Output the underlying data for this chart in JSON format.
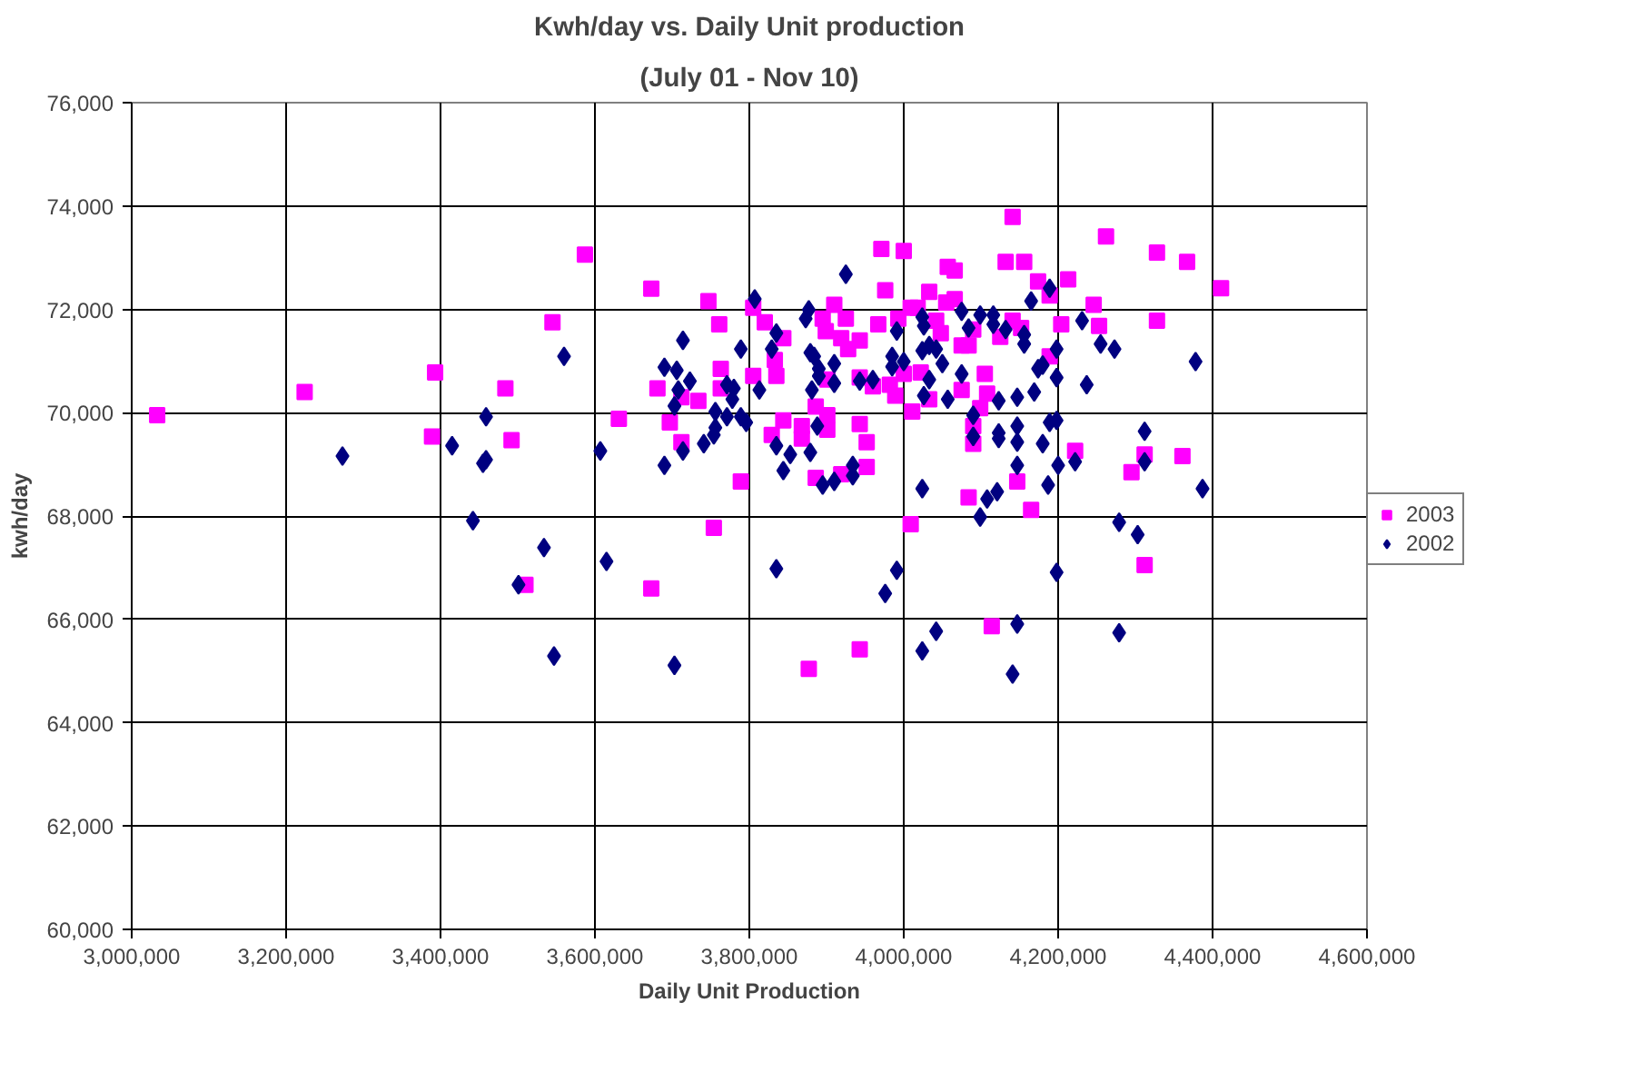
{
  "chart_data": {
    "type": "scatter",
    "title": "Kwh/day vs. Daily Unit production",
    "subtitle": "(July 01 - Nov 10)",
    "xlabel": "Daily Unit Production",
    "ylabel": "kwh/day",
    "xlim": [
      3000000,
      4600000
    ],
    "xticks": [
      {
        "value": 3000000,
        "label": "3,000,000"
      },
      {
        "value": 3200000,
        "label": "3,200,000"
      },
      {
        "value": 3400000,
        "label": "3,400,000"
      },
      {
        "value": 3600000,
        "label": "3,600,000"
      },
      {
        "value": 3800000,
        "label": "3,800,000"
      },
      {
        "value": 4000000,
        "label": "4,000,000"
      },
      {
        "value": 4200000,
        "label": "4,200,000"
      },
      {
        "value": 4400000,
        "label": "4,400,000"
      },
      {
        "value": 4600000,
        "label": "4,600,000"
      }
    ],
    "ylim": [
      60000,
      76000
    ],
    "yticks": [
      {
        "value": 60000,
        "label": "60,000"
      },
      {
        "value": 62000,
        "label": "62,000"
      },
      {
        "value": 64000,
        "label": "64,000"
      },
      {
        "value": 66000,
        "label": "66,000"
      },
      {
        "value": 68000,
        "label": "68,000"
      },
      {
        "value": 70000,
        "label": "70,000"
      },
      {
        "value": 72000,
        "label": "72,000"
      },
      {
        "value": 74000,
        "label": "74,000"
      },
      {
        "value": 76000,
        "label": "76,000"
      }
    ],
    "grid": true,
    "legend": "right",
    "series": [
      {
        "name": "2003",
        "color": "#ff00ff",
        "marker": "square",
        "x": [
          3033000,
          3224000,
          3393000,
          3389000,
          3484000,
          3492000,
          3510000,
          3545000,
          3587000,
          3673000,
          3747000,
          3761000,
          3763000,
          3763000,
          3681000,
          3712000,
          3734000,
          3631000,
          3697000,
          3712000,
          3789000,
          3754000,
          3673000,
          3877000,
          3805000,
          3820000,
          3844000,
          3833000,
          3835000,
          3805000,
          3844000,
          3829000,
          3868000,
          3868000,
          3886000,
          3901000,
          3901000,
          3886000,
          3919000,
          3910000,
          3895000,
          3899000,
          3919000,
          3928000,
          3901000,
          4141000,
          3971000,
          4000000,
          4057000,
          4066000,
          4132000,
          4156000,
          4174000,
          4213000,
          4262000,
          4246000,
          4253000,
          4204000,
          4189000,
          3976000,
          4033000,
          4009000,
          4018000,
          4055000,
          4066000,
          3993000,
          3967000,
          3925000,
          4042000,
          4048000,
          4075000,
          4084000,
          4090000,
          4141000,
          4152000,
          4125000,
          3943000,
          4189000,
          3943000,
          3960000,
          3982000,
          4000000,
          4022000,
          3989000,
          4033000,
          4075000,
          4105000,
          4108000,
          4099000,
          4011000,
          4090000,
          4090000,
          3943000,
          3952000,
          3952000,
          4147000,
          4165000,
          4084000,
          4009000,
          4114000,
          3943000,
          4222000,
          4328000,
          4367000,
          4411000,
          4328000,
          4312000,
          4361000,
          4295000,
          4312000
        ],
        "values": [
          69950,
          70400,
          70780,
          69540,
          70470,
          69470,
          66670,
          71750,
          73060,
          72400,
          72160,
          71710,
          70850,
          70470,
          70470,
          70300,
          70230,
          69880,
          69810,
          69430,
          68670,
          67770,
          66600,
          65040,
          72030,
          71750,
          71440,
          71020,
          70710,
          70710,
          69850,
          69570,
          69740,
          69500,
          70120,
          69950,
          69670,
          68740,
          68810,
          72090,
          71820,
          71580,
          71440,
          71230,
          70640,
          73790,
          73170,
          73130,
          72820,
          72750,
          72920,
          72920,
          72540,
          72580,
          73410,
          72090,
          71680,
          71710,
          72270,
          72370,
          72340,
          72030,
          72030,
          72130,
          72200,
          71820,
          71710,
          71820,
          71780,
          71540,
          71300,
          71300,
          71610,
          71780,
          71640,
          71470,
          71400,
          71090,
          70680,
          70510,
          70540,
          70750,
          70780,
          70330,
          70260,
          70440,
          70750,
          70370,
          70090,
          70020,
          69740,
          69400,
          69780,
          69430,
          68950,
          68670,
          68120,
          68360,
          67840,
          65870,
          65420,
          69260,
          73100,
          72920,
          72410,
          71780,
          69190,
          69160,
          68850,
          67050
        ]
      },
      {
        "name": "2002",
        "color": "#000080",
        "marker": "diamond",
        "x": [
          3273000,
          3415000,
          3459000,
          3455000,
          3459000,
          3442000,
          3534000,
          3501000,
          3547000,
          3560000,
          3607000,
          3615000,
          3703000,
          3714000,
          3690000,
          3706000,
          3723000,
          3708000,
          3703000,
          3756000,
          3771000,
          3780000,
          3778000,
          3771000,
          3789000,
          3796000,
          3756000,
          3754000,
          3741000,
          3714000,
          3690000,
          3807000,
          3789000,
          3813000,
          3829000,
          3835000,
          3835000,
          3853000,
          3844000,
          3835000,
          3877000,
          3873000,
          3879000,
          3884000,
          3890000,
          3890000,
          3910000,
          3910000,
          3881000,
          3888000,
          3879000,
          3895000,
          3910000,
          3925000,
          3934000,
          4189000,
          4165000,
          4024000,
          4026000,
          4075000,
          4099000,
          4116000,
          4116000,
          4084000,
          4132000,
          4156000,
          4156000,
          4231000,
          4255000,
          3991000,
          4024000,
          4033000,
          4042000,
          3985000,
          4000000,
          3985000,
          4050000,
          3943000,
          3960000,
          4033000,
          4075000,
          4026000,
          4057000,
          4123000,
          4147000,
          4169000,
          4174000,
          4180000,
          4198000,
          4198000,
          4237000,
          4090000,
          4090000,
          4123000,
          4123000,
          4147000,
          4147000,
          4147000,
          4180000,
          4189000,
          4198000,
          4200000,
          4187000,
          4222000,
          3934000,
          4024000,
          4108000,
          4121000,
          4099000,
          3991000,
          3976000,
          4198000,
          4042000,
          4024000,
          4147000,
          4141000,
          4273000,
          4378000,
          4312000,
          4312000,
          4387000,
          4279000,
          4303000,
          4279000
        ],
        "values": [
          69160,
          69360,
          69920,
          69020,
          69090,
          67910,
          67390,
          66670,
          65290,
          71090,
          69260,
          67120,
          65110,
          71400,
          70880,
          70820,
          70610,
          70440,
          70130,
          70020,
          70540,
          70470,
          70260,
          69920,
          69920,
          69810,
          69710,
          69570,
          69400,
          69260,
          68980,
          72200,
          71230,
          70440,
          71230,
          71540,
          69360,
          69190,
          68880,
          66980,
          71990,
          71820,
          71160,
          71090,
          70850,
          70710,
          70950,
          70570,
          70440,
          69740,
          69230,
          68600,
          68670,
          72680,
          68980,
          72410,
          72160,
          71850,
          71680,
          71960,
          71890,
          71890,
          71710,
          71640,
          71610,
          71510,
          71330,
          71780,
          71330,
          71580,
          71200,
          71300,
          71230,
          71090,
          70990,
          70890,
          70950,
          70610,
          70640,
          70640,
          70750,
          70330,
          70260,
          70230,
          70300,
          70400,
          70850,
          70920,
          70680,
          71230,
          70540,
          69950,
          69540,
          69610,
          69500,
          69740,
          69430,
          68980,
          69400,
          69810,
          69850,
          68980,
          68600,
          69050,
          68780,
          68530,
          68330,
          68470,
          67980,
          66950,
          66500,
          66910,
          65770,
          65390,
          65910,
          64940,
          71230,
          70990,
          69640,
          69050,
          68530,
          67880,
          67640,
          65740
        ]
      }
    ]
  }
}
